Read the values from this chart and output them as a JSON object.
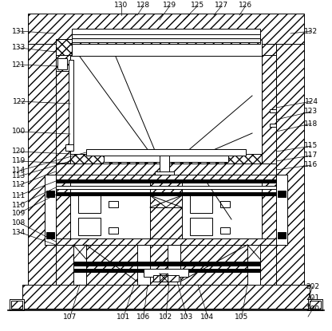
{
  "bg_color": "#ffffff",
  "lc": "#000000",
  "lw": 0.7
}
